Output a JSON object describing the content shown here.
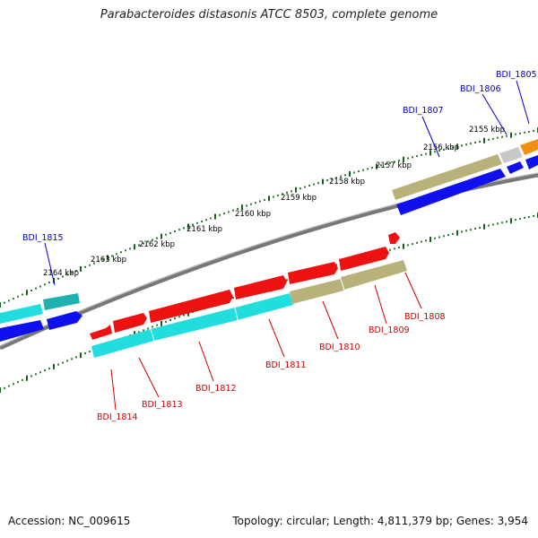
{
  "header": {
    "title": "Parabacteroides distasonis ATCC 8503, complete genome"
  },
  "footer": {
    "accession": "Accession: NC_009615",
    "topology": "Topology: circular; Length: 4,811,379 bp; Genes: 3,954"
  },
  "colors": {
    "backbone": "#888888",
    "tick_dot": "#2e7d32",
    "tick_major": "#1b5e20",
    "red": "#ee1111",
    "cyan": "#22dddd",
    "khaki": "#b8b27a",
    "blue": "#1010ee",
    "teal": "#20b0b0",
    "grey_gene": "#c8c8c8",
    "orange": "#f09010",
    "label_blue": "#0000cc",
    "label_red": "#cc0000"
  },
  "scale_labels": [
    "2155 kbp",
    "2156 kbp",
    "2157 kbp",
    "2158 kbp",
    "2159 kbp",
    "2160 kbp",
    "2161 kbp",
    "2162 kbp",
    "2163 kbp",
    "2164 kbp"
  ],
  "genes_top": [
    "BDI_1805",
    "BDI_1806",
    "BDI_1807",
    "BDI_1815"
  ],
  "genes_bottom": [
    "BDI_1808",
    "BDI_1809",
    "BDI_1810",
    "BDI_1811",
    "BDI_1812",
    "BDI_1813",
    "BDI_1814"
  ]
}
